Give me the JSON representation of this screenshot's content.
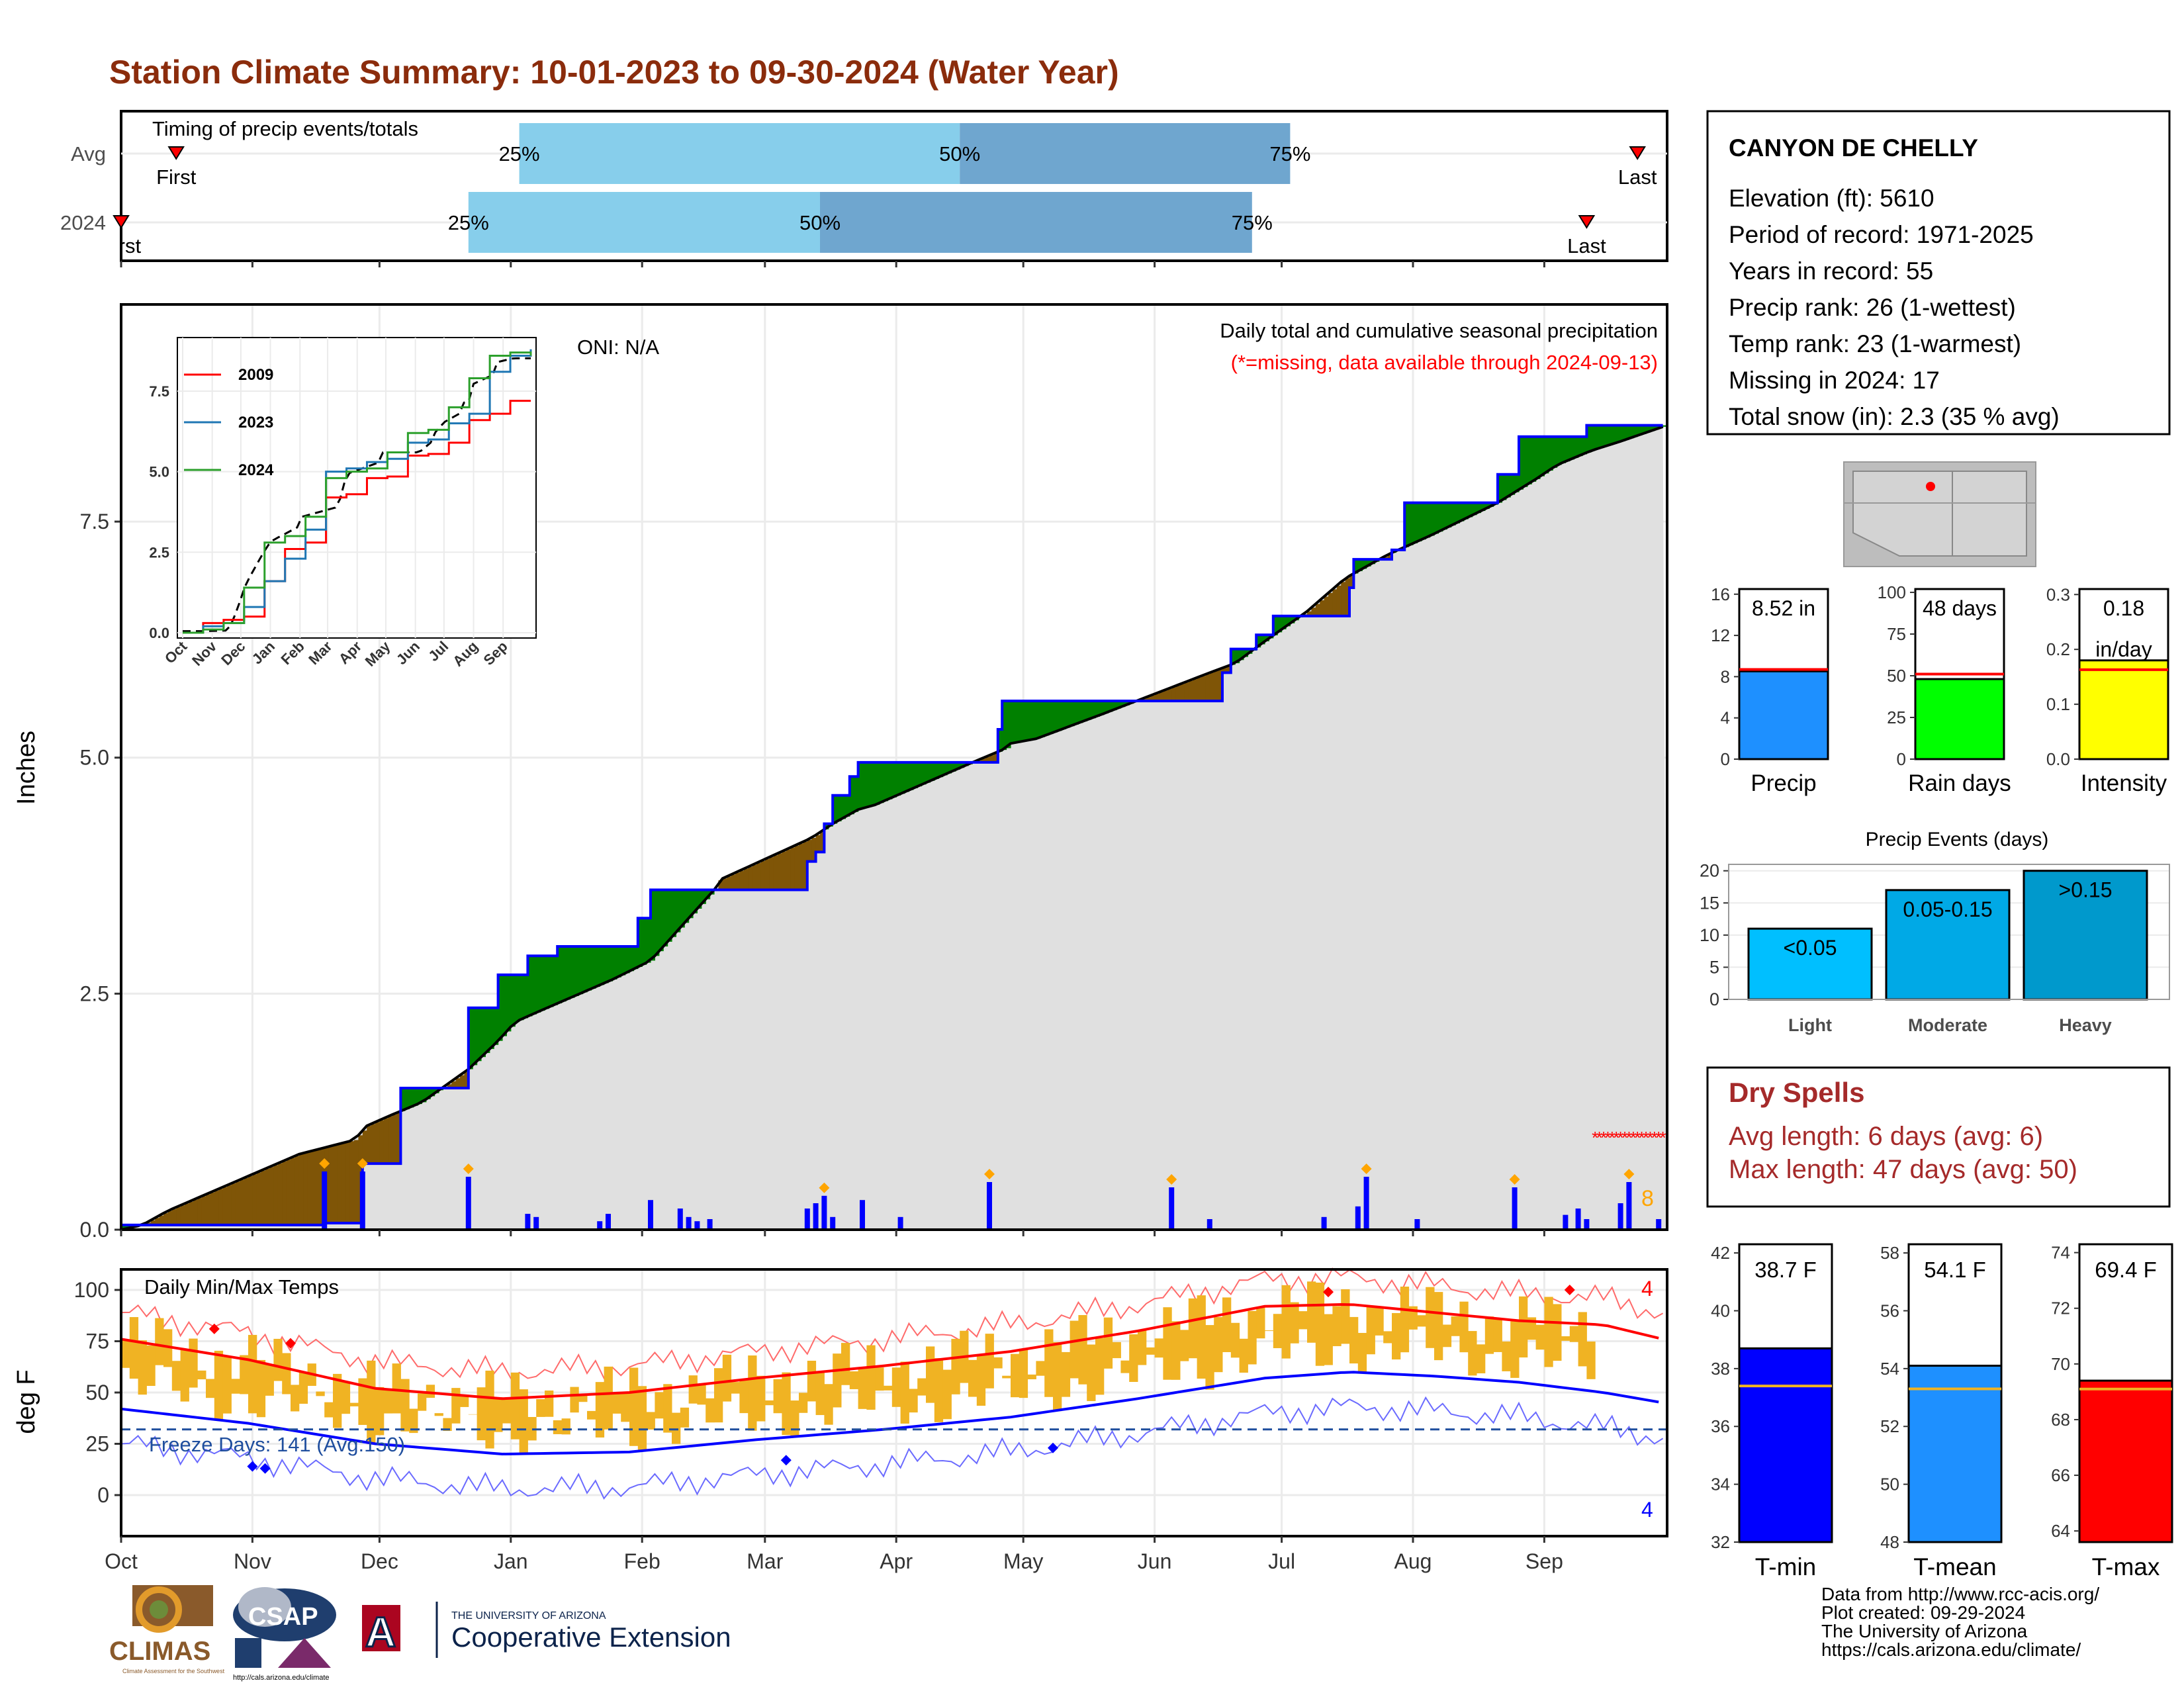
{
  "title": "Station Climate Summary: 10-01-2023 to 09-30-2024 (Water Year)",
  "colors": {
    "title": "#8b2c0c",
    "light_blue": "#87ceeb",
    "steel_blue": "#6fa6cf",
    "green": "#008000",
    "brown": "#7f5507",
    "grey_fill": "#e0e0e0",
    "blue": "#0000ff",
    "orange": "#ffa500",
    "red": "#ff0000",
    "temp_bar": "#f0b323",
    "dry_red": "#a52a2a"
  },
  "months": [
    "Oct",
    "Nov",
    "Dec",
    "Jan",
    "Feb",
    "Mar",
    "Apr",
    "May",
    "Jun",
    "Jul",
    "Aug",
    "Sep"
  ],
  "timing": {
    "label": "Timing of precip events/totals",
    "rows": [
      {
        "name": "Avg",
        "first_label": "First",
        "last_label": "Last",
        "first_day": 13,
        "last_day": 358,
        "p25_day": 94,
        "p50_day": 198,
        "p75_day": 276
      },
      {
        "name": "2024",
        "first_label": "First",
        "last_label": "Last",
        "first_day": 0,
        "last_day": 346,
        "p25_day": 82,
        "p50_day": 165,
        "p75_day": 267
      }
    ],
    "pct_labels": [
      "25%",
      "50%",
      "75%"
    ]
  },
  "precip_panel": {
    "ylabel": "Inches",
    "yticks": [
      "0.0",
      "2.5",
      "5.0",
      "7.5"
    ],
    "ymax": 9.8,
    "oni": "ONI: N/A",
    "note1": "Daily total and cumulative seasonal precipitation",
    "note2": "(*=missing, data available through 2024-09-13)",
    "missing_count": "8",
    "missing_range_days": [
      348,
      364
    ]
  },
  "inset": {
    "yticks": [
      "0.0",
      "2.5",
      "5.0",
      "7.5"
    ],
    "xticks": [
      "Oct",
      "Nov",
      "Dec",
      "Jan",
      "Feb",
      "Mar",
      "Apr",
      "May",
      "Jun",
      "Jul",
      "Aug",
      "Sep"
    ],
    "legend": [
      {
        "name": "2009",
        "color": "#ff0000"
      },
      {
        "name": "2023",
        "color": "#1f77b4"
      },
      {
        "name": "2024",
        "color": "#2ca02c"
      }
    ]
  },
  "temp_panel": {
    "ylabel": "deg F",
    "yticks": [
      "0",
      "25",
      "50",
      "75",
      "100"
    ],
    "label": "Daily Min/Max Temps",
    "freeze_label": "Freeze Days: 141 (Avg:150)",
    "record_high_count": "4",
    "record_low_count": "4"
  },
  "station": {
    "name": "CANYON DE CHELLY",
    "lines": [
      "Elevation (ft): 5610",
      "Period of record: 1971-2025",
      "Years in record: 55",
      "Precip rank: 26 (1-wettest)",
      "Temp rank: 23 (1-warmest)",
      "Missing in 2024: 17",
      "Total snow (in): 2.3 (35 % avg)"
    ]
  },
  "mini_bars": [
    {
      "label": "Precip",
      "value_text": "8.52 in",
      "value": 8.52,
      "avg": 8.7,
      "ymax": 16.5,
      "ticks": [
        "0",
        "4",
        "8",
        "12",
        "16"
      ],
      "tick_vals": [
        0,
        4,
        8,
        12,
        16
      ],
      "color": "#1e90ff"
    },
    {
      "label": "Rain days",
      "value_text": "48 days",
      "value": 48,
      "avg": 51,
      "ymax": 102,
      "ticks": [
        "0",
        "25",
        "50",
        "75",
        "100"
      ],
      "tick_vals": [
        0,
        25,
        50,
        75,
        100
      ],
      "color": "#00ff00"
    },
    {
      "label": "Intensity",
      "value_text": "0.18",
      "value_text2": "in/day",
      "value": 0.18,
      "avg": 0.163,
      "ymax": 0.31,
      "ticks": [
        "0.0",
        "0.1",
        "0.2",
        "0.3"
      ],
      "tick_vals": [
        0,
        0.1,
        0.2,
        0.3
      ],
      "color": "#ffff00"
    }
  ],
  "events": {
    "title": "Precip Events (days)",
    "yticks": [
      "0",
      "5",
      "10",
      "15",
      "20"
    ],
    "bars": [
      {
        "category": "Light",
        "label": "<0.05",
        "value": 11,
        "color": "#00bfff"
      },
      {
        "category": "Moderate",
        "label": "0.05-0.15",
        "value": 17,
        "color": "#00a9e6"
      },
      {
        "category": "Heavy",
        "label": ">0.15",
        "value": 20,
        "color": "#0099cc"
      }
    ]
  },
  "dry_spells": {
    "title": "Dry Spells",
    "avg_line": "Avg length: 6 days (avg: 6)",
    "max_line": "Max length: 47 days (avg: 50)"
  },
  "temp_bars": [
    {
      "label": "T-min",
      "value_text": "38.7 F",
      "value": 38.7,
      "avg": 37.4,
      "ymin": 32,
      "ymax": 42.3,
      "ticks": [
        "32",
        "34",
        "36",
        "38",
        "40",
        "42"
      ],
      "tick_vals": [
        32,
        34,
        36,
        38,
        40,
        42
      ],
      "color": "#0000ff"
    },
    {
      "label": "T-mean",
      "value_text": "54.1 F",
      "value": 54.1,
      "avg": 53.3,
      "ymin": 48,
      "ymax": 58.3,
      "ticks": [
        "48",
        "50",
        "52",
        "54",
        "56",
        "58"
      ],
      "tick_vals": [
        48,
        50,
        52,
        54,
        56,
        58
      ],
      "color": "#1e90ff"
    },
    {
      "label": "T-max",
      "value_text": "69.4 F",
      "value": 69.4,
      "avg": 69.1,
      "ymin": 63.6,
      "ymax": 74.3,
      "ticks": [
        "64",
        "66",
        "68",
        "70",
        "72",
        "74"
      ],
      "tick_vals": [
        64,
        66,
        68,
        70,
        72,
        74
      ],
      "color": "#ff0000"
    }
  ],
  "footer": [
    "Data from http://www.rcc-acis.org/",
    "Plot created: 09-29-2024",
    "The University of Arizona",
    "https://cals.arizona.edu/climate/"
  ],
  "logos": {
    "climas": "CLIMAS",
    "climas_sub": "Climate Assessment for the Southwest",
    "csap": "CSAP",
    "csap_sub": "http://cals.arizona.edu/climate",
    "ua_small": "THE UNIVERSITY OF ARIZONA",
    "ua_big": "Cooperative Extension",
    "ua_letter": "A"
  },
  "chart_data": [
    {
      "type": "area",
      "name": "cumulative_precip",
      "xlabel": "",
      "ylabel": "Inches",
      "x_categories": [
        "Oct",
        "Nov",
        "Dec",
        "Jan",
        "Feb",
        "Mar",
        "Apr",
        "May",
        "Jun",
        "Jul",
        "Aug",
        "Sep"
      ],
      "ylim": [
        0,
        9.8
      ],
      "series": [
        {
          "name": "",
          "x_day": [
            0,
            5,
            11,
            42,
            55,
            58,
            63,
            71,
            82,
            89,
            93,
            98,
            116,
            125,
            136,
            140,
            141,
            163,
            168,
            174,
            178,
            201,
            209,
            210,
            216,
            231,
            257,
            263,
            269,
            280,
            289,
            299,
            309,
            325,
            334,
            339,
            347,
            354,
            365
          ],
          "values": [
            0,
            0.05,
            0.2,
            0.8,
            0.95,
            1.1,
            1.2,
            1.35,
            1.7,
            2.0,
            2.2,
            2.3,
            2.65,
            2.85,
            3.4,
            3.6,
            3.7,
            4.15,
            4.3,
            4.45,
            4.5,
            4.95,
            5.1,
            5.15,
            5.2,
            5.45,
            5.9,
            6.0,
            6.2,
            6.55,
            6.9,
            7.15,
            7.35,
            7.7,
            7.95,
            8.1,
            8.25,
            8.35,
            8.52
          ]
        },
        {
          "name": "",
          "x_day": [
            0,
            23,
            48,
            57,
            66,
            82,
            89,
            96,
            103,
            122,
            125,
            162,
            164,
            166,
            168,
            172,
            174,
            207,
            208,
            248,
            260,
            262,
            268,
            272,
            290,
            291,
            300,
            303,
            325,
            330,
            346,
            364
          ],
          "values": [
            0.05,
            0.05,
            0.07,
            0.7,
            1.5,
            2.35,
            2.7,
            2.9,
            3.0,
            3.3,
            3.6,
            3.9,
            4.0,
            4.3,
            4.6,
            4.8,
            4.95,
            5.3,
            5.6,
            5.6,
            5.9,
            6.15,
            6.3,
            6.5,
            6.8,
            7.1,
            7.2,
            7.7,
            8.0,
            8.4,
            8.52,
            8.52
          ]
        }
      ]
    },
    {
      "type": "bar",
      "name": "daily_precip",
      "ylim": [
        0,
        9.8
      ],
      "x_day": [
        48,
        57,
        82,
        96,
        98,
        113,
        115,
        125,
        132,
        134,
        136,
        139,
        162,
        164,
        166,
        168,
        175,
        184,
        205,
        248,
        257,
        284,
        292,
        294,
        306,
        329,
        341,
        344,
        346,
        354,
        356,
        363
      ],
      "values": [
        0.55,
        0.55,
        0.5,
        0.15,
        0.12,
        0.08,
        0.15,
        0.28,
        0.2,
        0.12,
        0.08,
        0.1,
        0.2,
        0.25,
        0.32,
        0.12,
        0.28,
        0.12,
        0.45,
        0.4,
        0.1,
        0.12,
        0.22,
        0.5,
        0.1,
        0.4,
        0.14,
        0.2,
        0.1,
        0.25,
        0.45,
        0.1
      ]
    },
    {
      "type": "line",
      "name": "temperature",
      "ylabel": "deg F",
      "ylim": [
        -20,
        110
      ],
      "freeze_line": 32,
      "normal_max": {
        "x_day": [
          0,
          30,
          60,
          90,
          120,
          150,
          180,
          210,
          240,
          270,
          290,
          310,
          330,
          350,
          364
        ],
        "values": [
          76,
          66,
          52,
          47,
          50,
          57,
          63,
          70,
          80,
          92,
          93,
          89,
          85,
          83,
          76
        ]
      },
      "normal_min": {
        "x_day": [
          0,
          30,
          60,
          90,
          120,
          150,
          180,
          210,
          240,
          270,
          290,
          310,
          330,
          350,
          364
        ],
        "values": [
          42,
          35,
          25,
          20,
          21,
          27,
          32,
          38,
          47,
          57,
          60,
          58,
          55,
          50,
          45
        ]
      }
    }
  ]
}
